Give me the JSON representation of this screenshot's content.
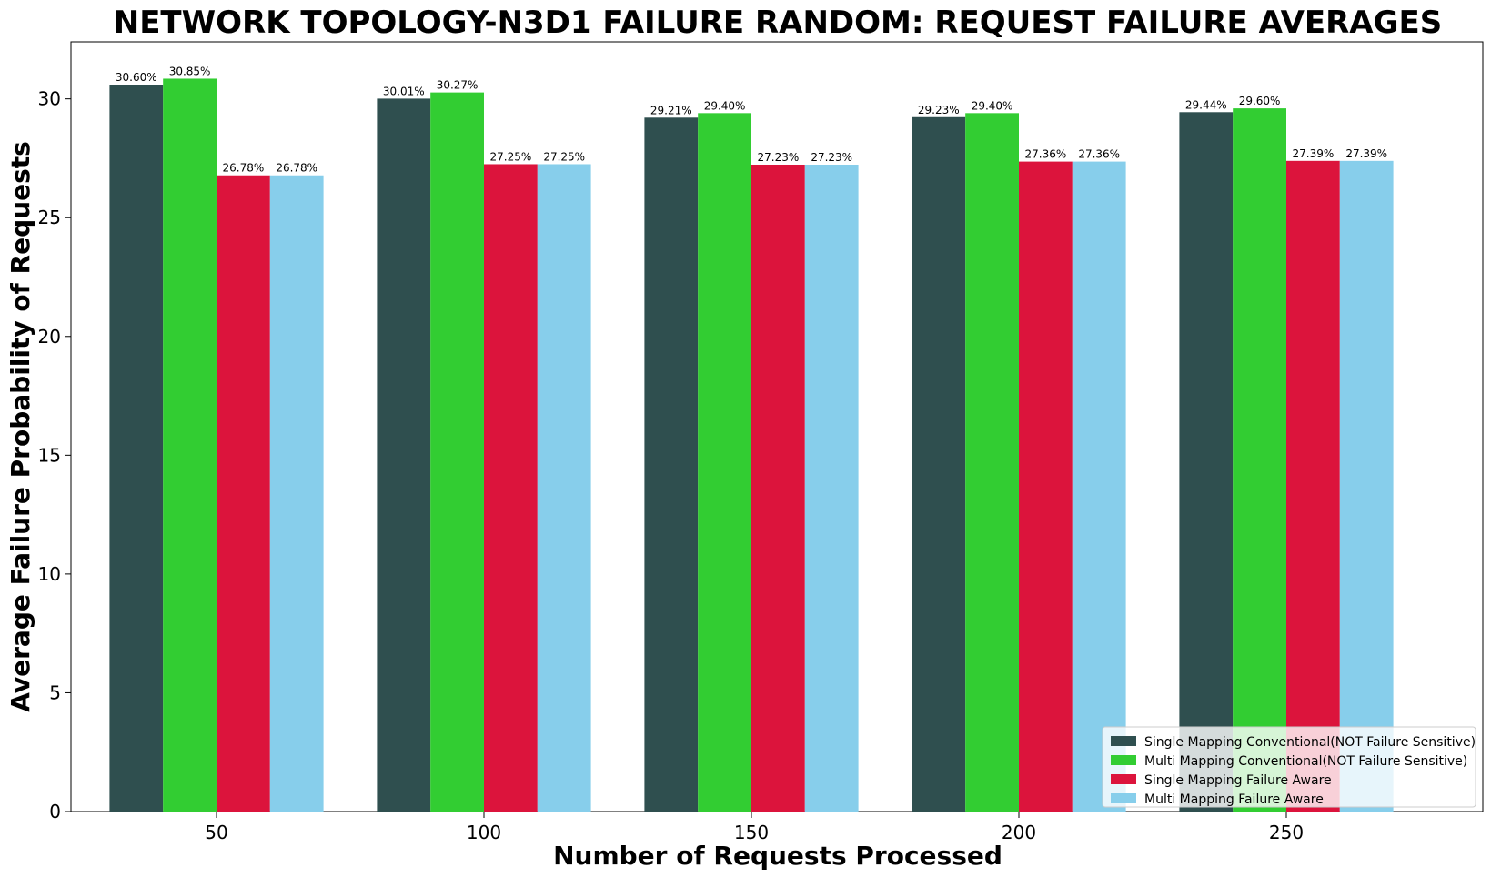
{
  "chart_data": {
    "type": "bar",
    "title": "NETWORK TOPOLOGY-N3D1 FAILURE RANDOM: REQUEST FAILURE AVERAGES",
    "xlabel": "Number of Requests Processed",
    "ylabel": "Average Failure Probability of Requests",
    "categories": [
      "50",
      "100",
      "150",
      "200",
      "250"
    ],
    "ylim": [
      0,
      32.4
    ],
    "yticks": [
      0,
      5,
      10,
      15,
      20,
      25,
      30
    ],
    "grid": false,
    "legend_position": "bottom-right",
    "series": [
      {
        "name": "Single Mapping Conventional(NOT Failure Sensitive)",
        "color": "#2f4f4f",
        "values": [
          30.6,
          30.01,
          29.21,
          29.23,
          29.44
        ],
        "labels": [
          "30.60%",
          "30.01%",
          "29.21%",
          "29.23%",
          "29.44%"
        ]
      },
      {
        "name": "Multi Mapping Conventional(NOT Failure Sensitive)",
        "color": "#32cd32",
        "values": [
          30.85,
          30.27,
          29.4,
          29.4,
          29.6
        ],
        "labels": [
          "30.85%",
          "30.27%",
          "29.40%",
          "29.40%",
          "29.60%"
        ]
      },
      {
        "name": "Single Mapping Failure Aware",
        "color": "#dc143c",
        "values": [
          26.78,
          27.25,
          27.23,
          27.36,
          27.39
        ],
        "labels": [
          "26.78%",
          "27.25%",
          "27.23%",
          "27.36%",
          "27.39%"
        ]
      },
      {
        "name": "Multi Mapping Failure Aware",
        "color": "#87ceeb",
        "values": [
          26.78,
          27.25,
          27.23,
          27.36,
          27.39
        ],
        "labels": [
          "26.78%",
          "27.25%",
          "27.23%",
          "27.36%",
          "27.39%"
        ]
      }
    ]
  }
}
